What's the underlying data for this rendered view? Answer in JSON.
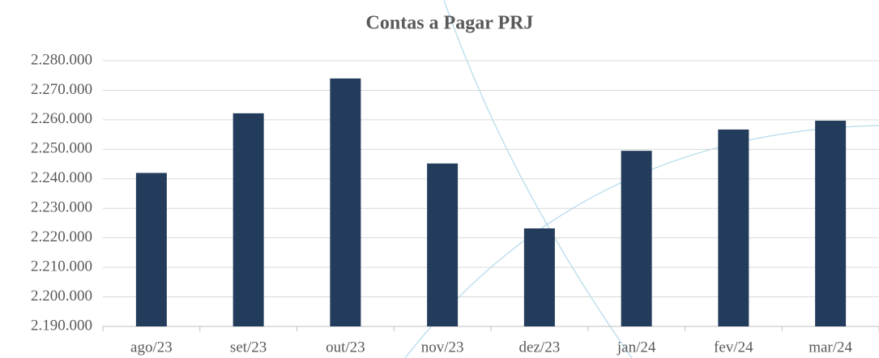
{
  "chart_data": {
    "type": "bar",
    "title": "Contas a Pagar PRJ",
    "categories": [
      "ago/23",
      "set/23",
      "out/23",
      "nov/23",
      "dez/23",
      "jan/24",
      "fev/24",
      "mar/24"
    ],
    "values": [
      2242000,
      2262200,
      2274000,
      2245200,
      2223200,
      2249500,
      2256700,
      2259700
    ],
    "color": "#243c5c",
    "ylim": [
      2190000,
      2280000
    ],
    "yticks": [
      {
        "value": 2190000,
        "label": "2.190.000"
      },
      {
        "value": 2200000,
        "label": "2.200.000"
      },
      {
        "value": 2210000,
        "label": "2.210.000"
      },
      {
        "value": 2220000,
        "label": "2.220.000"
      },
      {
        "value": 2230000,
        "label": "2.230.000"
      },
      {
        "value": 2240000,
        "label": "2.240.000"
      },
      {
        "value": 2250000,
        "label": "2.250.000"
      },
      {
        "value": 2260000,
        "label": "2.260.000"
      },
      {
        "value": 2270000,
        "label": "2.270.000"
      },
      {
        "value": 2280000,
        "label": "2.280.000"
      }
    ],
    "grid": true
  }
}
